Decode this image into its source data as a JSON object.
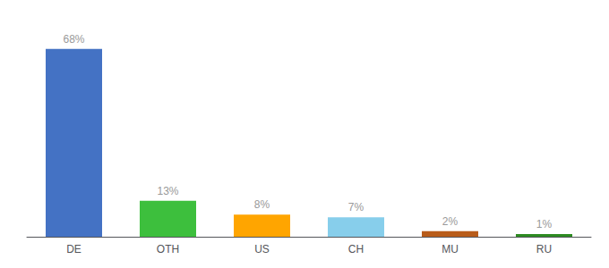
{
  "chart_data": {
    "type": "bar",
    "categories": [
      "DE",
      "OTH",
      "US",
      "CH",
      "MU",
      "RU"
    ],
    "values": [
      68,
      13,
      8,
      7,
      2,
      1
    ],
    "value_labels": [
      "68%",
      "13%",
      "8%",
      "7%",
      "2%",
      "1%"
    ],
    "colors": [
      "#4472c4",
      "#3dbf3d",
      "#ffa500",
      "#87ceeb",
      "#b85c1a",
      "#2d8b22"
    ],
    "ylim": [
      0,
      76
    ],
    "data_labels": true,
    "tick_labels": "x",
    "grid": false
  }
}
